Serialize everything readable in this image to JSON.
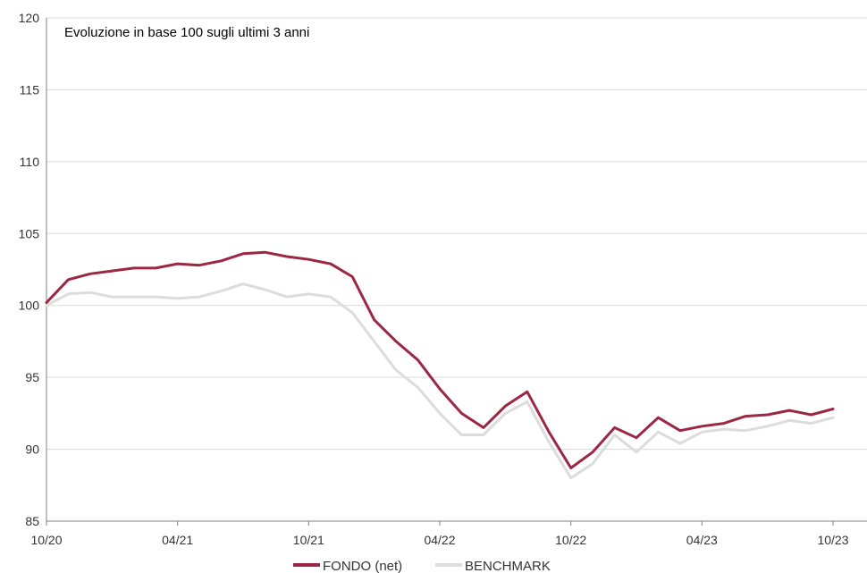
{
  "chart_data": {
    "type": "line",
    "title": "Evoluzione in base 100 sugli ultimi 3 anni",
    "xlabel": "",
    "ylabel": "",
    "ylim": [
      85,
      120
    ],
    "y_ticks": [
      85,
      90,
      95,
      100,
      105,
      110,
      115,
      120
    ],
    "x_ticks": [
      "10/20",
      "04/21",
      "10/21",
      "04/22",
      "10/22",
      "04/23",
      "10/23"
    ],
    "grid": "horizontal",
    "legend_position": "bottom-center",
    "x": [
      "10/20",
      "11/20",
      "12/20",
      "01/21",
      "02/21",
      "03/21",
      "04/21",
      "05/21",
      "06/21",
      "07/21",
      "08/21",
      "09/21",
      "10/21",
      "11/21",
      "12/21",
      "01/22",
      "02/22",
      "03/22",
      "04/22",
      "05/22",
      "06/22",
      "07/22",
      "08/22",
      "09/22",
      "10/22",
      "11/22",
      "12/22",
      "01/23",
      "02/23",
      "03/23",
      "04/23",
      "05/23",
      "06/23",
      "07/23",
      "08/23",
      "09/23",
      "10/23"
    ],
    "series": [
      {
        "name": "FONDO (net)",
        "color": "#9b2743",
        "values": [
          100.2,
          101.8,
          102.2,
          102.4,
          102.6,
          102.6,
          102.9,
          102.8,
          103.1,
          103.6,
          103.7,
          103.4,
          103.2,
          102.9,
          102.0,
          99.0,
          97.5,
          96.2,
          94.2,
          92.5,
          91.5,
          93.0,
          94.0,
          91.2,
          88.7,
          89.8,
          91.5,
          90.8,
          92.2,
          91.3,
          91.6,
          91.8,
          92.3,
          92.4,
          92.7,
          92.4,
          92.8
        ]
      },
      {
        "name": "BENCHMARK",
        "color": "#dcdcdc",
        "values": [
          100.0,
          100.8,
          100.9,
          100.6,
          100.6,
          100.6,
          100.5,
          100.6,
          101.0,
          101.5,
          101.1,
          100.6,
          100.8,
          100.6,
          99.5,
          97.5,
          95.5,
          94.3,
          92.5,
          91.0,
          91.0,
          92.5,
          93.3,
          90.5,
          88.0,
          89.0,
          91.0,
          89.8,
          91.2,
          90.4,
          91.2,
          91.4,
          91.3,
          91.6,
          92.0,
          91.8,
          92.2
        ]
      }
    ]
  }
}
